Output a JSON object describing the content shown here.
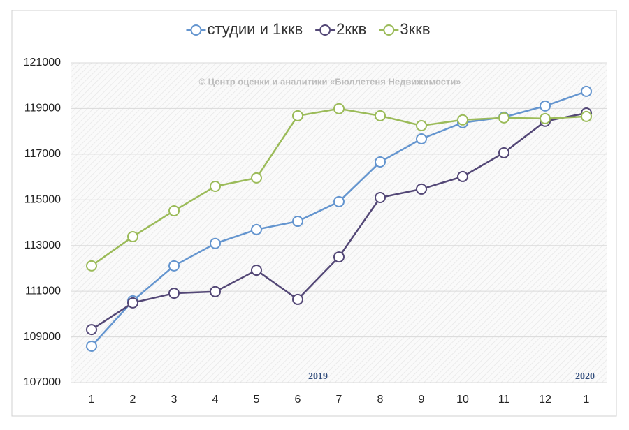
{
  "chart_data": {
    "type": "line",
    "categories": [
      "1",
      "2",
      "3",
      "4",
      "5",
      "6",
      "7",
      "8",
      "9",
      "10",
      "11",
      "12",
      "1"
    ],
    "series": [
      {
        "name": "студии и 1ккв",
        "color": "#6495cf",
        "values": [
          108590,
          110580,
          112110,
          113090,
          113700,
          114060,
          114920,
          116660,
          117670,
          118380,
          118620,
          119110,
          119750
        ]
      },
      {
        "name": "2ккв",
        "color": "#534776",
        "values": [
          109320,
          110490,
          110910,
          110980,
          111920,
          110640,
          112500,
          115100,
          115470,
          116020,
          117060,
          118440,
          118800
        ]
      },
      {
        "name": "3ккв",
        "color": "#9bbb59",
        "values": [
          112110,
          113390,
          114520,
          115590,
          115960,
          118680,
          118990,
          118680,
          118250,
          118500,
          118590,
          118560,
          118650
        ]
      }
    ],
    "ylim": [
      107000,
      121000
    ],
    "yticks": [
      107000,
      109000,
      111000,
      113000,
      115000,
      117000,
      119000,
      121000
    ],
    "grid": true,
    "legend": "top",
    "annotations": [
      "© Центр оценки и аналитики «Бюллетеня Недвижимости»",
      "2019",
      "2020"
    ]
  }
}
